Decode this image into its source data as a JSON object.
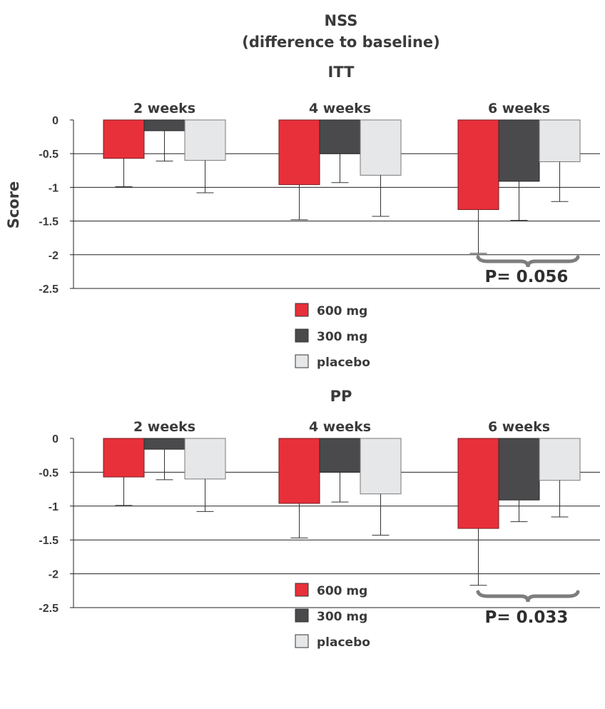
{
  "title_line1": "NSS",
  "title_line2": "(difference to baseline)",
  "ylabel": "Score",
  "legend": [
    {
      "label": "600 mg",
      "color": "#e8303a"
    },
    {
      "label": "300 mg",
      "color": "#4a4a4c"
    },
    {
      "label": "placebo",
      "color": "#e6e7e8"
    }
  ],
  "chart_data": [
    {
      "type": "bar",
      "title": "ITT",
      "categories": [
        "2 weeks",
        "4 weeks",
        "6 weeks"
      ],
      "series": [
        {
          "name": "600 mg",
          "values": [
            -0.57,
            -0.96,
            -1.33
          ],
          "error_low": [
            -0.99,
            -1.48,
            -1.98
          ]
        },
        {
          "name": "300 mg",
          "values": [
            -0.16,
            -0.5,
            -0.91
          ],
          "error_low": [
            -0.61,
            -0.93,
            -1.49
          ]
        },
        {
          "name": "placebo",
          "values": [
            -0.6,
            -0.82,
            -0.62
          ],
          "error_low": [
            -1.08,
            -1.43,
            -1.21
          ]
        }
      ],
      "ylim": [
        -2.5,
        0
      ],
      "yticks": [
        "0",
        "-0.5",
        "-1",
        "-1.5",
        "-2",
        "-2.5"
      ],
      "grid": true,
      "annotation": "P= 0.056"
    },
    {
      "type": "bar",
      "title": "PP",
      "categories": [
        "2 weeks",
        "4 weeks",
        "6 weeks"
      ],
      "series": [
        {
          "name": "600 mg",
          "values": [
            -0.57,
            -0.96,
            -1.33
          ],
          "error_low": [
            -0.99,
            -1.47,
            -2.17
          ]
        },
        {
          "name": "300 mg",
          "values": [
            -0.16,
            -0.5,
            -0.91
          ],
          "error_low": [
            -0.61,
            -0.94,
            -1.23
          ]
        },
        {
          "name": "placebo",
          "values": [
            -0.6,
            -0.82,
            -0.62
          ],
          "error_low": [
            -1.08,
            -1.43,
            -1.16
          ]
        }
      ],
      "ylim": [
        -2.5,
        0
      ],
      "yticks": [
        "0",
        "-0.5",
        "-1",
        "-1.5",
        "-2",
        "-2.5"
      ],
      "grid": true,
      "annotation": "P= 0.033"
    }
  ]
}
